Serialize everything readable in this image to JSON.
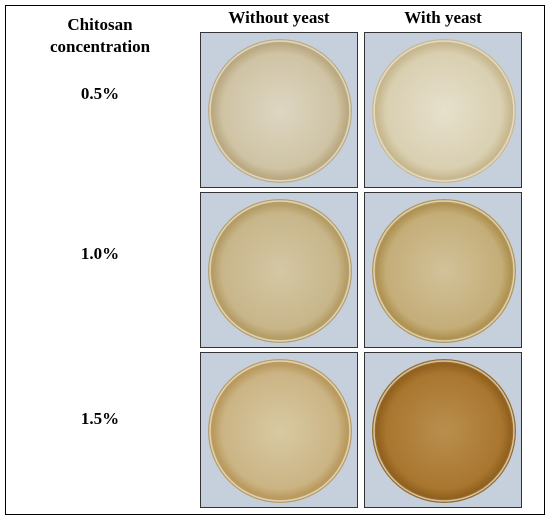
{
  "header": {
    "row_title": "Chitosan concentration",
    "columns": [
      "Without yeast",
      "With yeast"
    ]
  },
  "rows": [
    {
      "label": "0.5%"
    },
    {
      "label": "1.0%"
    },
    {
      "label": "1.5%"
    }
  ]
}
